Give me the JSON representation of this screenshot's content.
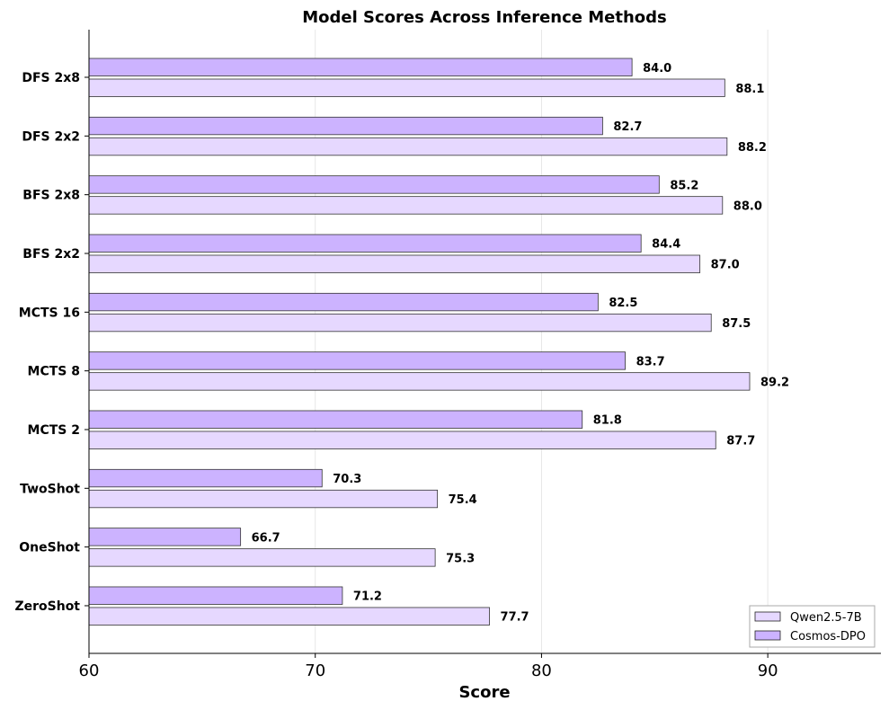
{
  "chart_data": {
    "type": "bar",
    "orientation": "horizontal",
    "title": "Model Scores Across Inference Methods",
    "xlabel": "Score",
    "ylabel": "",
    "xlim": [
      60,
      95
    ],
    "xticks": [
      60,
      70,
      80,
      90
    ],
    "grid": "vertical",
    "legend_position": "bottom-right",
    "categories": [
      "ZeroShot",
      "OneShot",
      "TwoShot",
      "MCTS 2",
      "MCTS 8",
      "MCTS 16",
      "BFS 2x2",
      "BFS 2x8",
      "DFS 2x2",
      "DFS 2x8"
    ],
    "series": [
      {
        "name": "Qwen2.5-7B",
        "color": "#e6d8ff",
        "values": [
          77.7,
          75.3,
          75.4,
          87.7,
          89.2,
          87.5,
          87.0,
          88.0,
          88.2,
          88.1
        ],
        "labels": [
          "77.7",
          "75.3",
          "75.4",
          "87.7",
          "89.2",
          "87.5",
          "87.0",
          "88.0",
          "88.2",
          "88.1"
        ]
      },
      {
        "name": "Cosmos-DPO",
        "color": "#ccb3ff",
        "values": [
          71.2,
          66.7,
          70.3,
          81.8,
          83.7,
          82.5,
          84.4,
          85.2,
          82.7,
          84.0
        ],
        "labels": [
          "71.2",
          "66.7",
          "70.3",
          "81.8",
          "83.7",
          "82.5",
          "84.4",
          "85.2",
          "82.7",
          "84.0"
        ]
      }
    ]
  }
}
